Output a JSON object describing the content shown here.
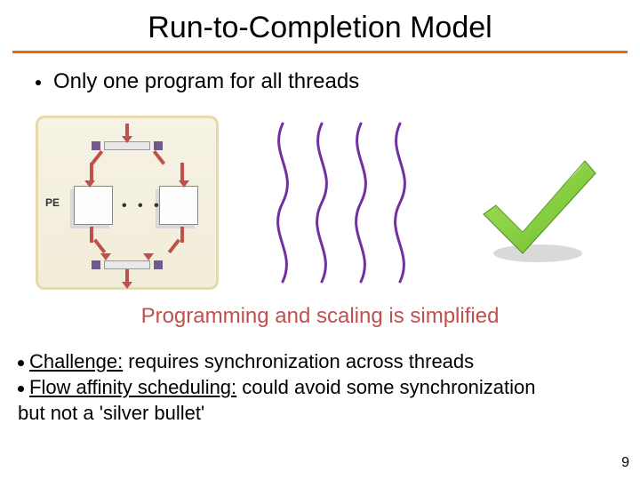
{
  "title": "Run-to-Completion Model",
  "underline_color": "#e46c0a",
  "bullet_main": "Only one program for all threads",
  "pe_diagram": {
    "label": "PE",
    "dots": "• • •",
    "bg_top": "#f6f2e4",
    "bg_bottom": "#f2edd9",
    "border": "#e8d9a8",
    "arrow_color": "#c0504d",
    "square_color": "#71588f"
  },
  "threads": {
    "count": 4,
    "stroke": "#7030a0",
    "stroke_width": 3
  },
  "checkmark": {
    "fill_light": "#a8e05f",
    "fill_dark": "#6cbf2a",
    "shadow": "#d9d9d9"
  },
  "subtitle": "Programming and scaling is simplified",
  "subtitle_color": "#c0504d",
  "body": {
    "line1_label": "Challenge:",
    "line1_rest": " requires synchronization across threads",
    "line2_label": "Flow affinity scheduling:",
    "line2_rest": " could avoid some synchronization",
    "line3": "but not a 'silver bullet'"
  },
  "page_number": "9"
}
